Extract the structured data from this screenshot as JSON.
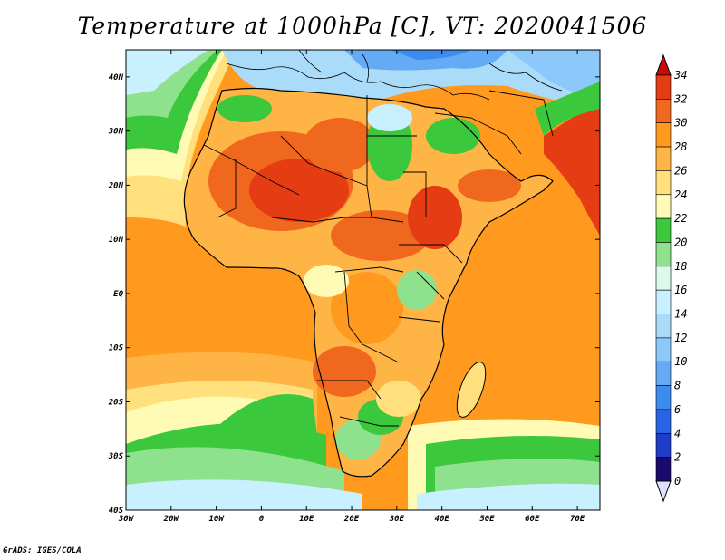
{
  "title": "Temperature at 1000hPa [C], VT: 2020041506",
  "credit": "GrADS: IGES/COLA",
  "map": {
    "lon_range": [
      -30,
      75
    ],
    "lat_range": [
      -40,
      45
    ],
    "x_ticks": [
      {
        "lon": -30,
        "label": "30W"
      },
      {
        "lon": -20,
        "label": "20W"
      },
      {
        "lon": -10,
        "label": "10W"
      },
      {
        "lon": 0,
        "label": "0"
      },
      {
        "lon": 10,
        "label": "10E"
      },
      {
        "lon": 20,
        "label": "20E"
      },
      {
        "lon": 30,
        "label": "30E"
      },
      {
        "lon": 40,
        "label": "40E"
      },
      {
        "lon": 50,
        "label": "50E"
      },
      {
        "lon": 60,
        "label": "60E"
      },
      {
        "lon": 70,
        "label": "70E"
      }
    ],
    "y_ticks": [
      {
        "lat": 40,
        "label": "40N"
      },
      {
        "lat": 30,
        "label": "30N"
      },
      {
        "lat": 20,
        "label": "20N"
      },
      {
        "lat": 10,
        "label": "10N"
      },
      {
        "lat": 0,
        "label": "EQ"
      },
      {
        "lat": -10,
        "label": "10S"
      },
      {
        "lat": -20,
        "label": "20S"
      },
      {
        "lat": -30,
        "label": "30S"
      },
      {
        "lat": -40,
        "label": "40S"
      }
    ]
  },
  "colorbar": {
    "ticks": [
      "34",
      "32",
      "30",
      "28",
      "26",
      "24",
      "22",
      "20",
      "18",
      "16",
      "14",
      "12",
      "10",
      "8",
      "6",
      "4",
      "2",
      "0"
    ],
    "levels": [
      {
        "min": 0,
        "max": 2,
        "color": "#1a0a6e"
      },
      {
        "min": 2,
        "max": 4,
        "color": "#1e3cc8"
      },
      {
        "min": 4,
        "max": 6,
        "color": "#2a64e6"
      },
      {
        "min": 6,
        "max": 8,
        "color": "#3c8cf0"
      },
      {
        "min": 8,
        "max": 10,
        "color": "#64aaf5"
      },
      {
        "min": 10,
        "max": 12,
        "color": "#8cc8fa"
      },
      {
        "min": 12,
        "max": 14,
        "color": "#aadcfa"
      },
      {
        "min": 14,
        "max": 16,
        "color": "#c8f0ff"
      },
      {
        "min": 16,
        "max": 18,
        "color": "#dcfaec"
      },
      {
        "min": 18,
        "max": 20,
        "color": "#8ee28e"
      },
      {
        "min": 20,
        "max": 22,
        "color": "#3cc83c"
      },
      {
        "min": 22,
        "max": 24,
        "color": "#fffab4"
      },
      {
        "min": 24,
        "max": 26,
        "color": "#ffe07c"
      },
      {
        "min": 26,
        "max": 28,
        "color": "#ffb446"
      },
      {
        "min": 28,
        "max": 30,
        "color": "#ff9a1e"
      },
      {
        "min": 30,
        "max": 32,
        "color": "#f0681e"
      },
      {
        "min": 32,
        "max": 34,
        "color": "#e63c14"
      }
    ],
    "under_color": "#e0e0ff",
    "over_color": "#c80a0a"
  }
}
